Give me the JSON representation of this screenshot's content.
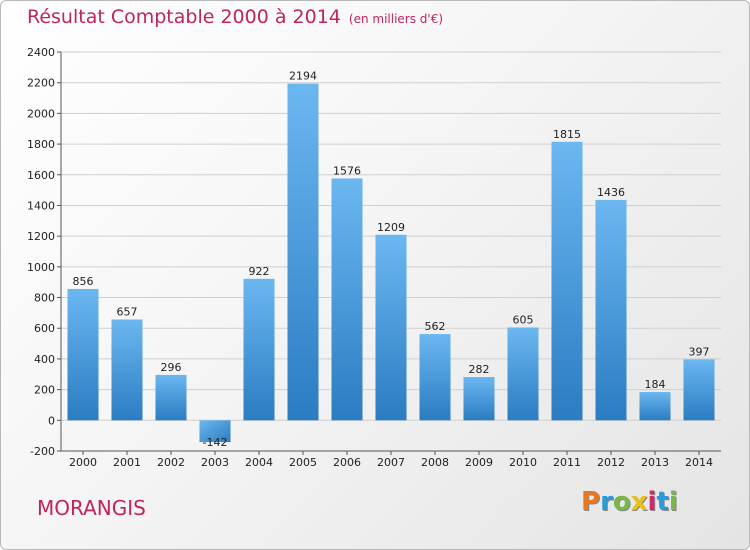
{
  "header": {
    "title": "Résultat Comptable 2000 à 2014",
    "subtitle": "(en milliers d'€)"
  },
  "footer": {
    "commune": "MORANGIS",
    "logo": "Proxiti",
    "logo_colors": [
      "#e87722",
      "#2b9ad6",
      "#7ab648",
      "#e8c21a",
      "#d6246f",
      "#2b9ad6",
      "#7ab648"
    ]
  },
  "colors": {
    "bar_light": "#6bb7f0",
    "bar_dark": "#2b7cc2",
    "grid": "#cfcfcf",
    "text_accent": "#c0245f"
  },
  "chart_data": {
    "type": "bar",
    "title": "Résultat Comptable 2000 à 2014",
    "subtitle": "(en milliers d'€)",
    "categories": [
      "2000",
      "2001",
      "2002",
      "2003",
      "2004",
      "2005",
      "2006",
      "2007",
      "2008",
      "2009",
      "2010",
      "2011",
      "2012",
      "2013",
      "2014"
    ],
    "values": [
      856,
      657,
      296,
      -142,
      922,
      2194,
      1576,
      1209,
      562,
      282,
      605,
      1815,
      1436,
      184,
      397
    ],
    "data_labels": [
      "856",
      "657",
      "296",
      "-142",
      "922",
      "2194",
      "1576",
      "1209",
      "562",
      "282",
      "605",
      "1815",
      "1436",
      "184",
      "397"
    ],
    "ylim": [
      -200,
      2400
    ],
    "yticks": [
      -200,
      0,
      200,
      400,
      600,
      800,
      1000,
      1200,
      1400,
      1600,
      1800,
      2000,
      2200,
      2400
    ],
    "ytick_labels": [
      "-200",
      "0",
      "200",
      "400",
      "600",
      "800",
      "1000",
      "1200",
      "1400",
      "1600",
      "1800",
      "2000",
      "2200",
      "2400"
    ],
    "grid": true,
    "legend": "none"
  }
}
